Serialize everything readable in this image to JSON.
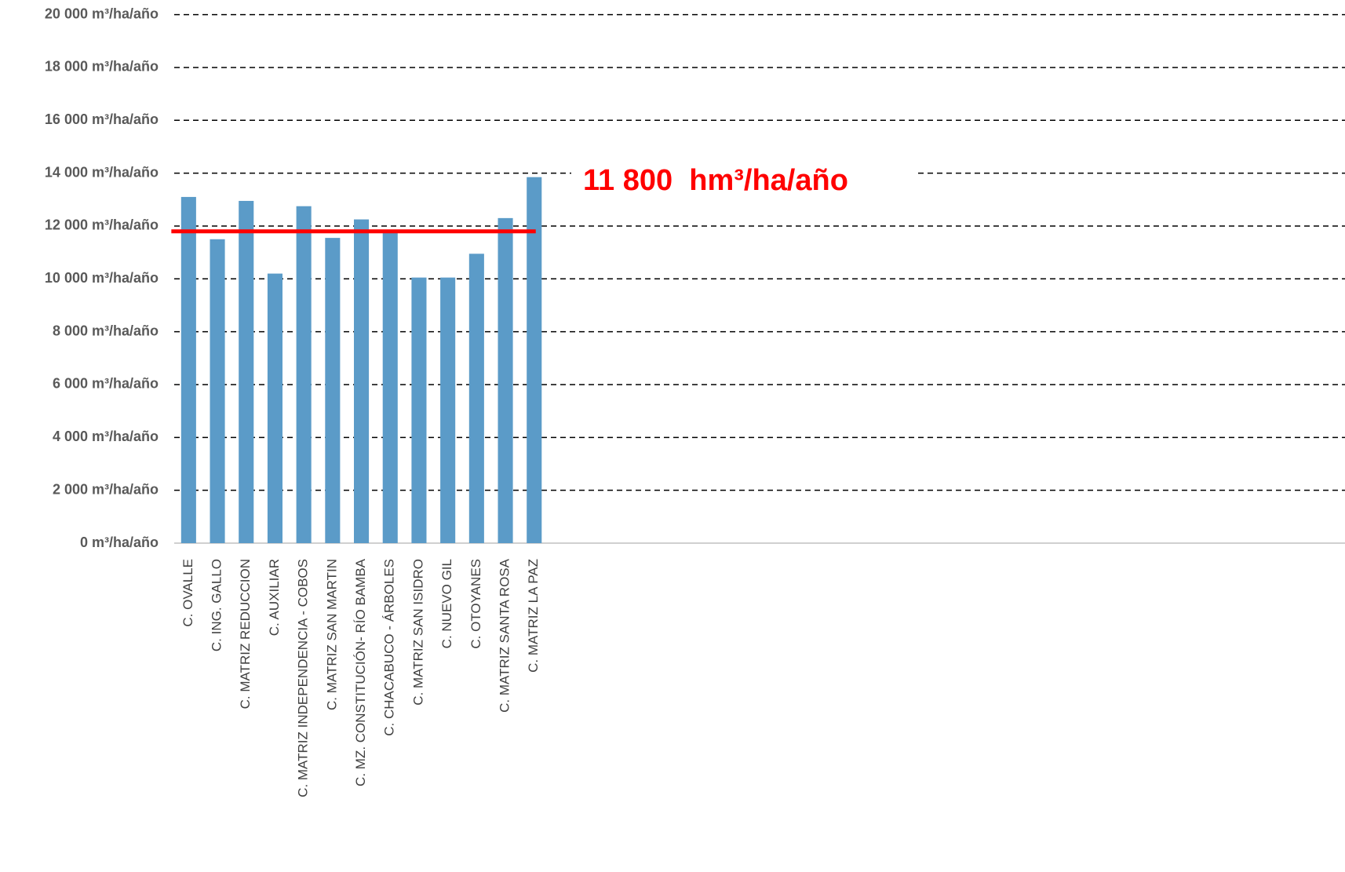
{
  "chart_data": {
    "type": "bar",
    "categories": [
      "C. OVALLE",
      "C. ING. GALLO",
      "C. MATRIZ REDUCCION",
      "C. AUXILIAR",
      "C. MATRIZ INDEPENDENCIA - COBOS",
      "C. MATRIZ SAN MARTIN",
      "C. MZ. CONSTITUCIÓN- RÍO BAMBA",
      "C. CHACABUCO - ÁRBOLES",
      "C. MATRIZ SAN ISIDRO",
      "C. NUEVO GIL",
      "C. OTOYANES",
      "C. MATRIZ SANTA ROSA",
      "C. MATRIZ LA PAZ"
    ],
    "values": [
      13100,
      11500,
      12950,
      10200,
      12750,
      11550,
      12250,
      11850,
      10050,
      10050,
      10950,
      12300,
      13850
    ],
    "color": "#5b9bc8",
    "ylim": [
      0,
      20000
    ],
    "yticks": [
      {
        "value": 0,
        "label": "0 m³/ha/año"
      },
      {
        "value": 2000,
        "label": "2 000 m³/ha/año"
      },
      {
        "value": 4000,
        "label": "4 000 m³/ha/año"
      },
      {
        "value": 6000,
        "label": "6 000 m³/ha/año"
      },
      {
        "value": 8000,
        "label": "8 000 m³/ha/año"
      },
      {
        "value": 10000,
        "label": "10 000 m³/ha/año"
      },
      {
        "value": 12000,
        "label": "12 000 m³/ha/año"
      },
      {
        "value": 14000,
        "label": "14 000 m³/ha/año"
      },
      {
        "value": 16000,
        "label": "16 000 m³/ha/año"
      },
      {
        "value": 18000,
        "label": "18 000 m³/ha/año"
      },
      {
        "value": 20000,
        "label": "20 000 m³/ha/año"
      }
    ],
    "grid": true,
    "reference_line": {
      "value": 11800,
      "label": "11 800  hm³/ha/año",
      "color": "#ff0000"
    }
  }
}
